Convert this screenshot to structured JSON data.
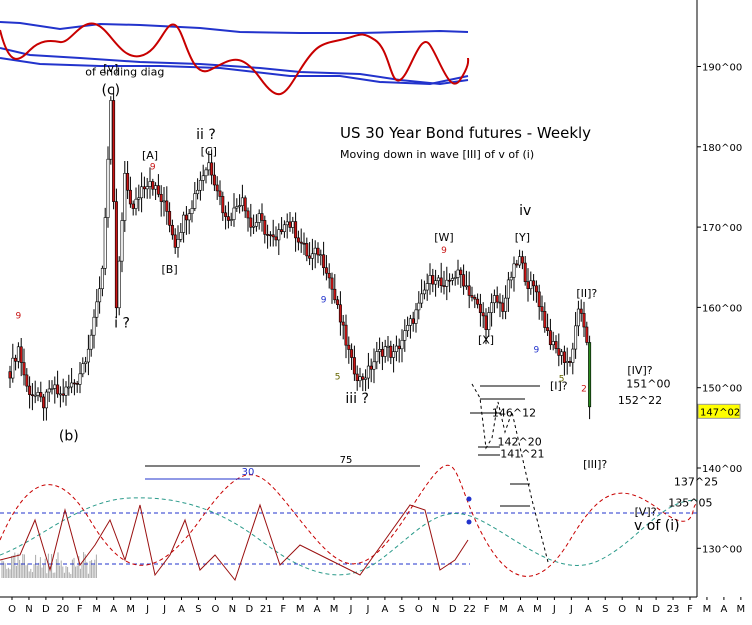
{
  "chart_data": {
    "type": "candlestick",
    "title": "US 30 Year Bond futures - Weekly",
    "subtitle": "Moving down in wave [III] of v of (i)",
    "price_axis": {
      "position": "right",
      "ticks": [
        "190^00",
        "180^00",
        "170^00",
        "160^00",
        "150^00",
        "140^00",
        "130^00"
      ],
      "tick_values": [
        190,
        180,
        170,
        160,
        150,
        140,
        130
      ],
      "ylim": [
        124.2,
        197.5
      ],
      "last_price_label": "147^02",
      "last_price": 147.06
    },
    "time_axis": {
      "labels": [
        "O",
        "N",
        "D",
        "20",
        "F",
        "M",
        "A",
        "M",
        "J",
        "J",
        "A",
        "S",
        "O",
        "N",
        "D",
        "21",
        "F",
        "M",
        "A",
        "M",
        "J",
        "J",
        "A",
        "S",
        "O",
        "N",
        "D",
        "22",
        "F",
        "M",
        "A",
        "M",
        "J",
        "J",
        "A",
        "S",
        "O",
        "N",
        "D",
        "23",
        "F",
        "M",
        "A",
        "M"
      ],
      "start_index": 0,
      "label_spacing_weeks": 4.35
    },
    "price_path": [
      [
        0,
        152
      ],
      [
        3,
        155
      ],
      [
        6,
        150
      ],
      [
        9,
        149
      ],
      [
        12,
        148
      ],
      [
        15,
        150
      ],
      [
        18,
        149
      ],
      [
        21,
        150
      ],
      [
        24,
        151
      ],
      [
        27,
        154
      ],
      [
        30,
        158
      ],
      [
        33,
        165
      ],
      [
        36,
        185
      ],
      [
        38,
        160
      ],
      [
        41,
        176
      ],
      [
        44,
        172
      ],
      [
        47,
        175
      ],
      [
        50,
        176
      ],
      [
        53,
        174
      ],
      [
        56,
        172
      ],
      [
        59,
        168
      ],
      [
        62,
        171
      ],
      [
        65,
        173
      ],
      [
        68,
        176
      ],
      [
        71,
        178
      ],
      [
        74,
        175
      ],
      [
        77,
        171
      ],
      [
        80,
        172
      ],
      [
        83,
        174
      ],
      [
        86,
        170
      ],
      [
        89,
        171
      ],
      [
        92,
        169
      ],
      [
        95,
        168
      ],
      [
        98,
        171
      ],
      [
        101,
        170
      ],
      [
        104,
        168
      ],
      [
        107,
        166
      ],
      [
        110,
        167
      ],
      [
        113,
        165
      ],
      [
        116,
        161
      ],
      [
        119,
        157
      ],
      [
        122,
        153
      ],
      [
        125,
        151
      ],
      [
        128,
        152
      ],
      [
        131,
        154
      ],
      [
        134,
        155
      ],
      [
        137,
        154
      ],
      [
        140,
        156
      ],
      [
        143,
        158
      ],
      [
        146,
        160
      ],
      [
        149,
        163
      ],
      [
        152,
        164
      ],
      [
        155,
        162
      ],
      [
        158,
        164
      ],
      [
        161,
        164
      ],
      [
        164,
        162
      ],
      [
        167,
        160
      ],
      [
        170,
        158
      ],
      [
        173,
        161
      ],
      [
        176,
        160
      ],
      [
        179,
        164
      ],
      [
        182,
        166
      ],
      [
        185,
        163
      ],
      [
        188,
        162
      ],
      [
        191,
        158
      ],
      [
        194,
        155
      ],
      [
        197,
        154
      ],
      [
        200,
        153
      ],
      [
        203,
        160
      ],
      [
        206,
        156
      ],
      [
        207,
        147
      ]
    ],
    "wave_labels": [
      {
        "text": "[v]",
        "week": 36,
        "price": 189.3
      },
      {
        "text": "of ending diag",
        "week": 41,
        "price": 188.9
      },
      {
        "text": "(c)",
        "week": 36,
        "price": 186.5
      },
      {
        "text": "(b)",
        "week": 21,
        "price": 143.4
      },
      {
        "text": "i ?",
        "week": 40,
        "price": 157.5
      },
      {
        "text": "[A]",
        "week": 50,
        "price": 178.5
      },
      {
        "text": "9",
        "week": 51,
        "price": 177.2
      },
      {
        "text": "ii ?",
        "week": 70,
        "price": 181.0
      },
      {
        "text": "[C]",
        "week": 71,
        "price": 179.0
      },
      {
        "text": "[B]",
        "week": 57,
        "price": 164.3
      },
      {
        "text": "9",
        "week": 112,
        "price": 160.6
      },
      {
        "text": "5",
        "week": 117,
        "price": 151.0
      },
      {
        "text": "iii ?",
        "week": 124,
        "price": 148.1
      },
      {
        "text": "[W]",
        "week": 155,
        "price": 168.3
      },
      {
        "text": "9",
        "week": 155,
        "price": 166.8
      },
      {
        "text": "iv",
        "week": 184,
        "price": 171.5
      },
      {
        "text": "[Y]",
        "week": 183,
        "price": 168.3
      },
      {
        "text": "[X]",
        "week": 170,
        "price": 155.5
      },
      {
        "text": "9",
        "week": 188,
        "price": 154.4
      },
      {
        "text": "[II]?",
        "week": 206,
        "price": 161.3
      },
      {
        "text": "[I]?",
        "week": 196,
        "price": 149.8
      },
      {
        "text": "5",
        "week": 197,
        "price": 150.8
      },
      {
        "text": "2",
        "week": 205,
        "price": 149.5
      },
      {
        "text": "9",
        "week": 3,
        "price": 158.6
      },
      {
        "text": "[IV]?",
        "week": 225,
        "price": 151.7
      },
      {
        "text": "151^00",
        "week": 228,
        "price": 150.0
      },
      {
        "text": "152^22",
        "week": 225,
        "price": 148.0
      },
      {
        "text": "146^12",
        "week": 180,
        "price": 146.4
      },
      {
        "text": "142^20",
        "week": 182,
        "price": 142.8
      },
      {
        "text": "141^21",
        "week": 183,
        "price": 141.3
      },
      {
        "text": "[III]?",
        "week": 209,
        "price": 140.0
      },
      {
        "text": "137^25",
        "week": 245,
        "price": 137.8
      },
      {
        "text": "135^05",
        "week": 243,
        "price": 135.2
      },
      {
        "text": "[V]?",
        "week": 227,
        "price": 134.1
      },
      {
        "text": "v of (i)",
        "week": 231,
        "price": 132.3
      }
    ],
    "cycle_markers": [
      {
        "text": "75",
        "week": 120,
        "price": 140.6
      },
      {
        "text": "30",
        "week": 85,
        "price": 139.1
      }
    ],
    "projection_levels": [
      151.0,
      152.69,
      146.38,
      142.63,
      141.66,
      137.78,
      135.16
    ],
    "legend": "none",
    "grid": false,
    "colors": {
      "up": "#ffffff",
      "down": "#c81414",
      "outline": "#000000",
      "highlight": "#2a8a1e",
      "band": "#2233cc",
      "osc_red": "#c80000",
      "osc_teal": "#2a9a8a",
      "lastprice_bg": "#ffff00"
    }
  }
}
